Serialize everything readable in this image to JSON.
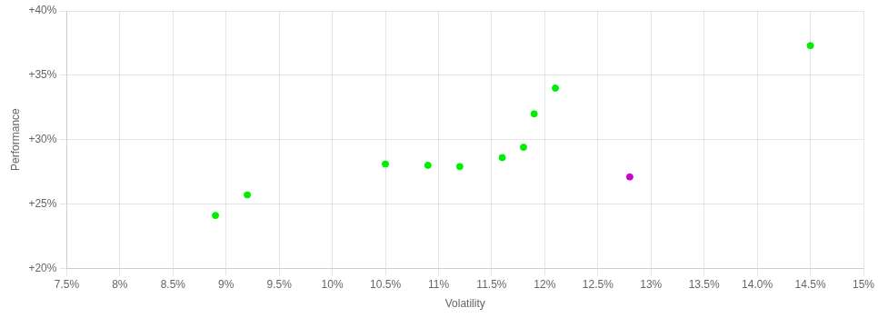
{
  "chart_data": {
    "type": "scatter",
    "xlabel": "Volatility",
    "ylabel": "Performance",
    "xlim": [
      0.075,
      0.15
    ],
    "ylim": [
      0.2,
      0.4
    ],
    "xticks": [
      {
        "value": 0.075,
        "label": "7.5%"
      },
      {
        "value": 0.08,
        "label": "8%"
      },
      {
        "value": 0.085,
        "label": "8.5%"
      },
      {
        "value": 0.09,
        "label": "9%"
      },
      {
        "value": 0.095,
        "label": "9.5%"
      },
      {
        "value": 0.1,
        "label": "10%"
      },
      {
        "value": 0.105,
        "label": "10.5%"
      },
      {
        "value": 0.11,
        "label": "11%"
      },
      {
        "value": 0.115,
        "label": "11.5%"
      },
      {
        "value": 0.12,
        "label": "12%"
      },
      {
        "value": 0.125,
        "label": "12.5%"
      },
      {
        "value": 0.13,
        "label": "13%"
      },
      {
        "value": 0.135,
        "label": "13.5%"
      },
      {
        "value": 0.14,
        "label": "14.0%"
      },
      {
        "value": 0.145,
        "label": "14.5%"
      },
      {
        "value": 0.15,
        "label": "15%"
      }
    ],
    "yticks": [
      {
        "value": 0.2,
        "label": "+20%"
      },
      {
        "value": 0.25,
        "label": "+25%"
      },
      {
        "value": 0.3,
        "label": "+30%"
      },
      {
        "value": 0.35,
        "label": "+35%"
      },
      {
        "value": 0.4,
        "label": "+40%"
      }
    ],
    "grid": true,
    "series": [
      {
        "color": "#00ee00",
        "marker": "circle",
        "x": [
          0.089,
          0.092,
          0.105,
          0.109,
          0.112,
          0.116,
          0.118,
          0.119,
          0.121,
          0.145
        ],
        "values": [
          0.241,
          0.257,
          0.281,
          0.28,
          0.279,
          0.286,
          0.294,
          0.32,
          0.34,
          0.373
        ]
      },
      {
        "color": "#cc00cc",
        "marker": "circle",
        "x": [
          0.128
        ],
        "values": [
          0.271
        ]
      }
    ]
  }
}
